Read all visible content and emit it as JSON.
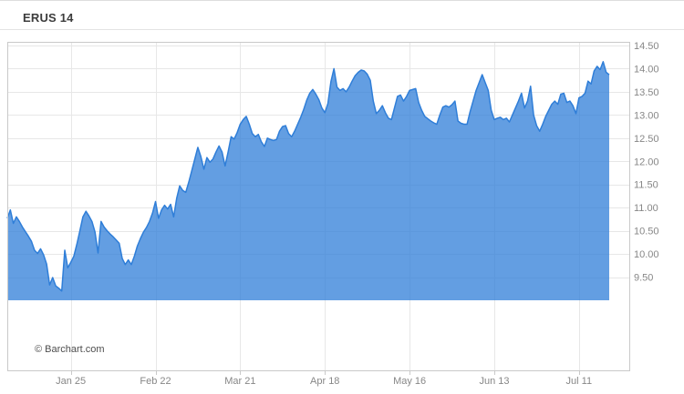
{
  "header": {
    "title": "ERUS 14"
  },
  "footer": {
    "credit": "© Barchart.com"
  },
  "colors": {
    "background": "#ffffff",
    "series_line": "#2f7ed8",
    "series_fill": "rgba(47,126,216,0.75)",
    "grid": "#e7e7e7",
    "plot_border": "#c9c9c9",
    "tick_mark": "#c9c9c9",
    "axis_text": "#878787",
    "title_text": "#3c3c3c",
    "credit_text": "#4d4d4d",
    "divider": "#e3e3e3"
  },
  "chart_data": {
    "type": "area",
    "title": "ERUS 14",
    "legend": "none",
    "grid": true,
    "x_axis": {
      "start_date": "Jan 4",
      "end_date": "Jul 21",
      "range_days": [
        0,
        199
      ],
      "tick_labels": [
        "Jan 25",
        "Feb 22",
        "Mar 21",
        "Apr 18",
        "May 16",
        "Jun 13",
        "Jul 11"
      ],
      "tick_days": [
        21,
        49,
        77,
        105,
        133,
        161,
        189
      ]
    },
    "y_axis": {
      "side": "right",
      "tick_labels": [
        "14.50",
        "14.00",
        "13.50",
        "13.00",
        "12.50",
        "12.00",
        "11.50",
        "11.00",
        "10.50",
        "10.00",
        "9.50"
      ],
      "tick_values": [
        14.5,
        14.0,
        13.5,
        13.0,
        12.5,
        12.0,
        11.5,
        11.0,
        10.5,
        10.0,
        9.5
      ],
      "value_max_label": 14.5,
      "area_baseline": 9.0
    },
    "series": [
      {
        "name": "ERUS price",
        "sampling": "daily (index = days since start)",
        "values": [
          10.77,
          10.95,
          10.66,
          10.8,
          10.7,
          10.58,
          10.48,
          10.38,
          10.27,
          10.08,
          10.01,
          10.11,
          9.98,
          9.78,
          9.33,
          9.49,
          9.31,
          9.26,
          9.2,
          10.08,
          9.7,
          9.82,
          9.95,
          10.21,
          10.5,
          10.8,
          10.92,
          10.82,
          10.7,
          10.47,
          10.02,
          10.7,
          10.58,
          10.5,
          10.43,
          10.37,
          10.3,
          10.23,
          9.9,
          9.77,
          9.87,
          9.77,
          9.95,
          10.17,
          10.33,
          10.47,
          10.57,
          10.7,
          10.88,
          11.13,
          10.77,
          10.95,
          11.05,
          10.97,
          11.07,
          10.8,
          11.2,
          11.47,
          11.37,
          11.33,
          11.55,
          11.8,
          12.05,
          12.3,
          12.1,
          11.83,
          12.08,
          11.98,
          12.05,
          12.2,
          12.33,
          12.2,
          11.9,
          12.2,
          12.53,
          12.48,
          12.62,
          12.8,
          12.9,
          12.97,
          12.8,
          12.6,
          12.53,
          12.58,
          12.42,
          12.32,
          12.5,
          12.47,
          12.45,
          12.47,
          12.65,
          12.75,
          12.77,
          12.6,
          12.53,
          12.65,
          12.8,
          12.95,
          13.12,
          13.32,
          13.47,
          13.55,
          13.45,
          13.33,
          13.15,
          13.05,
          13.25,
          13.72,
          14.0,
          13.6,
          13.53,
          13.57,
          13.5,
          13.6,
          13.73,
          13.85,
          13.92,
          13.97,
          13.95,
          13.88,
          13.75,
          13.3,
          13.03,
          13.1,
          13.2,
          13.05,
          12.93,
          12.9,
          13.15,
          13.4,
          13.43,
          13.3,
          13.4,
          13.53,
          13.55,
          13.57,
          13.27,
          13.1,
          12.97,
          12.92,
          12.87,
          12.83,
          12.8,
          13.0,
          13.17,
          13.2,
          13.17,
          13.22,
          13.3,
          12.87,
          12.82,
          12.8,
          12.8,
          13.07,
          13.3,
          13.53,
          13.7,
          13.87,
          13.7,
          13.53,
          13.1,
          12.9,
          12.93,
          12.95,
          12.9,
          12.93,
          12.85,
          13.0,
          13.15,
          13.3,
          13.47,
          13.15,
          13.3,
          13.62,
          13.0,
          12.77,
          12.65,
          12.8,
          12.97,
          13.1,
          13.23,
          13.3,
          13.23,
          13.45,
          13.47,
          13.27,
          13.3,
          13.2,
          13.03,
          13.37,
          13.4,
          13.47,
          13.73,
          13.67,
          13.95,
          14.05,
          13.98,
          14.15,
          13.92,
          13.87
        ]
      }
    ]
  }
}
